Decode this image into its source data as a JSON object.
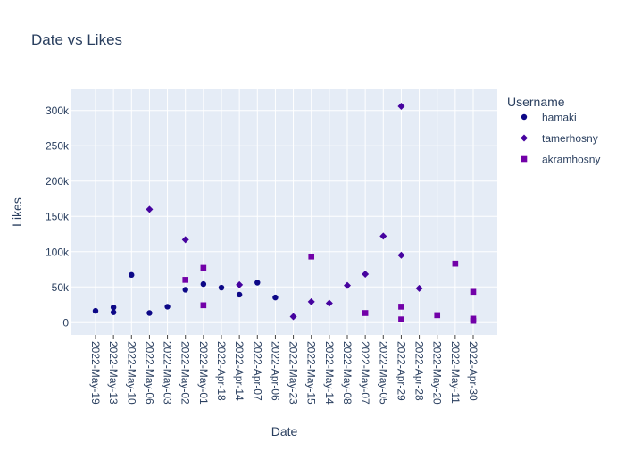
{
  "chart_data": {
    "type": "scatter",
    "title": "Date vs Likes",
    "xlabel": "Date",
    "ylabel": "Likes",
    "categories": [
      "2022-May-19",
      "2022-May-13",
      "2022-May-10",
      "2022-May-06",
      "2022-May-03",
      "2022-May-02",
      "2022-May-01",
      "2022-Apr-18",
      "2022-Apr-14",
      "2022-Apr-07",
      "2022-Apr-06",
      "2022-May-23",
      "2022-May-15",
      "2022-May-14",
      "2022-May-08",
      "2022-May-07",
      "2022-May-05",
      "2022-Apr-29",
      "2022-Apr-28",
      "2022-May-20",
      "2022-May-11",
      "2022-Apr-30"
    ],
    "ylim": [
      -18000,
      330000
    ],
    "yticks": [
      0,
      50000,
      100000,
      150000,
      200000,
      250000,
      300000
    ],
    "ytick_labels": [
      "0",
      "50k",
      "100k",
      "150k",
      "200k",
      "250k",
      "300k"
    ],
    "grid": true,
    "legend": {
      "title": "Username",
      "position": "right"
    },
    "series": [
      {
        "name": "hamaki",
        "color": "#0d0887",
        "marker": "circle",
        "points": [
          {
            "x": "2022-May-19",
            "y": 16000
          },
          {
            "x": "2022-May-13",
            "y": 14000
          },
          {
            "x": "2022-May-13",
            "y": 21000
          },
          {
            "x": "2022-May-10",
            "y": 67000
          },
          {
            "x": "2022-May-06",
            "y": 13000
          },
          {
            "x": "2022-May-03",
            "y": 22000
          },
          {
            "x": "2022-May-02",
            "y": 46000
          },
          {
            "x": "2022-May-01",
            "y": 54000
          },
          {
            "x": "2022-Apr-18",
            "y": 49000
          },
          {
            "x": "2022-Apr-14",
            "y": 39000
          },
          {
            "x": "2022-Apr-07",
            "y": 56000
          },
          {
            "x": "2022-Apr-06",
            "y": 35000
          }
        ]
      },
      {
        "name": "tamerhosny",
        "color": "#46039f",
        "marker": "diamond",
        "points": [
          {
            "x": "2022-May-06",
            "y": 160000
          },
          {
            "x": "2022-May-02",
            "y": 117000
          },
          {
            "x": "2022-Apr-14",
            "y": 53000
          },
          {
            "x": "2022-May-23",
            "y": 8000
          },
          {
            "x": "2022-May-15",
            "y": 29000
          },
          {
            "x": "2022-May-14",
            "y": 27000
          },
          {
            "x": "2022-May-08",
            "y": 52000
          },
          {
            "x": "2022-May-07",
            "y": 68000
          },
          {
            "x": "2022-May-05",
            "y": 122000
          },
          {
            "x": "2022-Apr-29",
            "y": 306000
          },
          {
            "x": "2022-Apr-29",
            "y": 95000
          },
          {
            "x": "2022-Apr-28",
            "y": 48000
          }
        ]
      },
      {
        "name": "akramhosny",
        "color": "#7201a8",
        "marker": "square",
        "points": [
          {
            "x": "2022-May-02",
            "y": 60000
          },
          {
            "x": "2022-May-01",
            "y": 77000
          },
          {
            "x": "2022-May-01",
            "y": 24000
          },
          {
            "x": "2022-May-15",
            "y": 93000
          },
          {
            "x": "2022-May-07",
            "y": 13000
          },
          {
            "x": "2022-Apr-29",
            "y": 22000
          },
          {
            "x": "2022-Apr-29",
            "y": 4000
          },
          {
            "x": "2022-May-20",
            "y": 10000
          },
          {
            "x": "2022-May-11",
            "y": 83000
          },
          {
            "x": "2022-Apr-30",
            "y": 43000
          },
          {
            "x": "2022-Apr-30",
            "y": 5000
          },
          {
            "x": "2022-Apr-30",
            "y": 2000
          }
        ]
      }
    ],
    "colors": {
      "plot_background": "#e5ecf6",
      "gridline": "#ffffff",
      "text": "#2a3f5f",
      "axis_text": "#506784"
    }
  }
}
